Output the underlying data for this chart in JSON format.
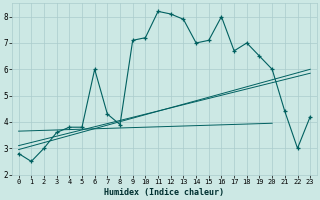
{
  "xlabel": "Humidex (Indice chaleur)",
  "ylabel": "",
  "xlim": [
    -0.5,
    23.5
  ],
  "ylim": [
    2,
    8.5
  ],
  "yticks": [
    2,
    3,
    4,
    5,
    6,
    7,
    8
  ],
  "xticks": [
    0,
    1,
    2,
    3,
    4,
    5,
    6,
    7,
    8,
    9,
    10,
    11,
    12,
    13,
    14,
    15,
    16,
    17,
    18,
    19,
    20,
    21,
    22,
    23
  ],
  "bg_color": "#cce8e4",
  "grid_color": "#aacccc",
  "line_color": "#006060",
  "main_line": {
    "x": [
      0,
      1,
      2,
      3,
      4,
      5,
      6,
      7,
      8,
      9,
      10,
      11,
      12,
      13,
      14,
      15,
      16,
      17,
      18,
      19,
      20,
      21,
      22,
      23
    ],
    "y": [
      2.8,
      2.5,
      3.0,
      3.6,
      3.8,
      3.8,
      6.0,
      4.3,
      3.9,
      7.1,
      7.2,
      8.2,
      8.1,
      7.9,
      7.0,
      7.1,
      8.0,
      6.7,
      7.0,
      6.5,
      6.0,
      4.4,
      3.0,
      4.2
    ]
  },
  "regression_line1": {
    "x": [
      0,
      23
    ],
    "y": [
      2.95,
      6.0
    ]
  },
  "regression_line2": {
    "x": [
      0,
      23
    ],
    "y": [
      3.1,
      5.85
    ]
  },
  "flat_line": {
    "x": [
      0,
      20
    ],
    "y": [
      3.65,
      3.95
    ]
  }
}
